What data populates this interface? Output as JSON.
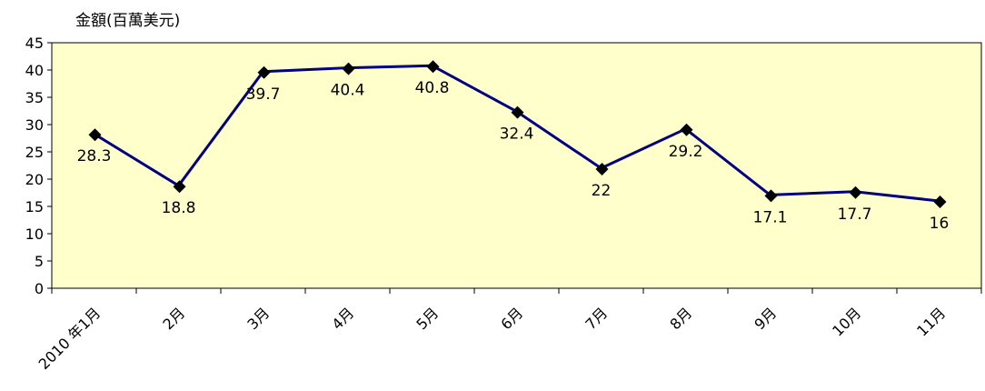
{
  "chart_data": {
    "type": "line",
    "ylabel": "金額(百萬美元)",
    "xlabel": "",
    "title": "",
    "categories": [
      "2010 年1月",
      "2月",
      "3月",
      "4月",
      "5月",
      "6月",
      "7月",
      "8月",
      "9月",
      "10月",
      "11月"
    ],
    "series": [
      {
        "values": [
          28.3,
          18.8,
          39.7,
          40.4,
          40.8,
          32.4,
          22,
          29.2,
          17.1,
          17.7,
          16
        ]
      }
    ],
    "data_labels": [
      "28.3",
      "18.8",
      "39.7",
      "40.4",
      "40.8",
      "32.4",
      "22",
      "29.2",
      "17.1",
      "17.7",
      "16"
    ],
    "ylim": [
      0,
      45
    ],
    "yticks": [
      "0",
      "5",
      "10",
      "15",
      "20",
      "25",
      "30",
      "35",
      "40",
      "45"
    ],
    "grid": false,
    "legend": "none",
    "colors": {
      "plot_background": "#ffffcc",
      "line": "#000080",
      "marker": "#000000"
    }
  }
}
